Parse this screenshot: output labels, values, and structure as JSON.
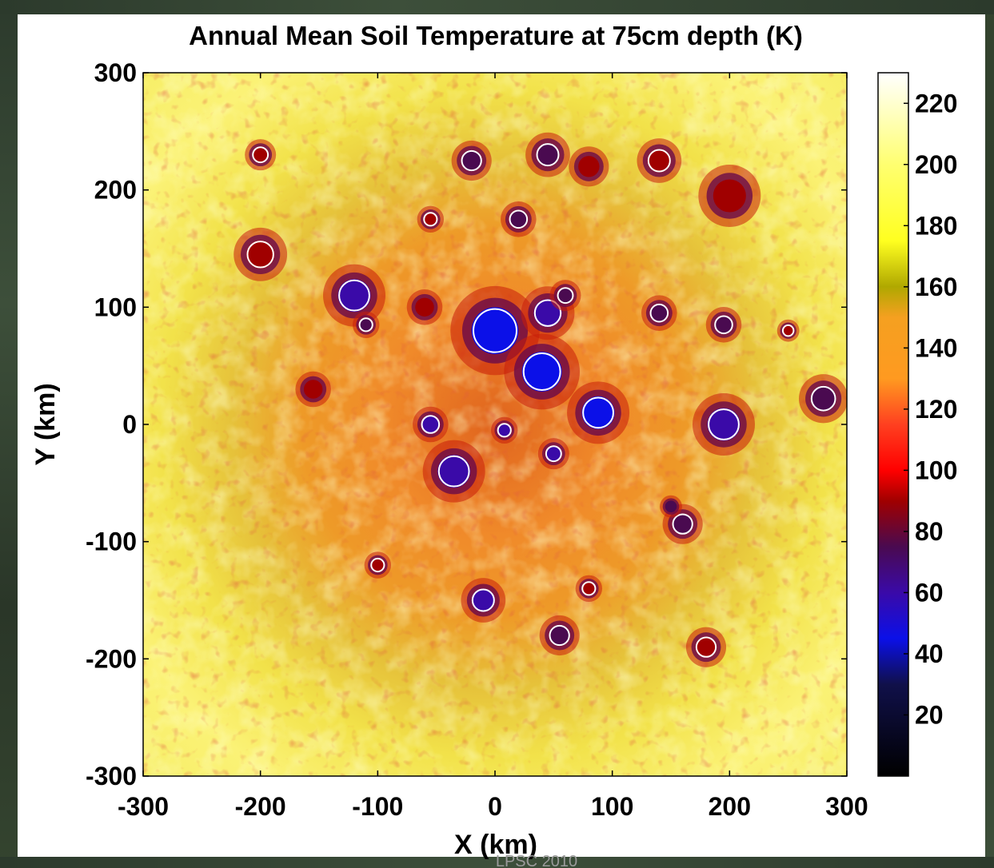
{
  "chart_data": {
    "type": "heatmap",
    "title": "Annual Mean Soil Temperature at 75cm depth (K)",
    "xlabel": "X (km)",
    "ylabel": "Y (km)",
    "xlim": [
      -300,
      300
    ],
    "ylim": [
      -300,
      300
    ],
    "x_ticks": [
      "-300",
      "-200",
      "-100",
      "0",
      "100",
      "200",
      "300"
    ],
    "y_ticks": [
      "300",
      "200",
      "100",
      "0",
      "-100",
      "-200",
      "-300"
    ],
    "colorbar": {
      "range": [
        0,
        230
      ],
      "ticks": [
        "220",
        "200",
        "180",
        "160",
        "140",
        "120",
        "100",
        "80",
        "60",
        "40",
        "20"
      ],
      "colormap": [
        {
          "value": 0,
          "color": "#000000"
        },
        {
          "value": 30,
          "color": "#10104a"
        },
        {
          "value": 45,
          "color": "#0b10e8"
        },
        {
          "value": 60,
          "color": "#3a0aa8"
        },
        {
          "value": 75,
          "color": "#4a0a50"
        },
        {
          "value": 90,
          "color": "#a00000"
        },
        {
          "value": 100,
          "color": "#ff0000"
        },
        {
          "value": 115,
          "color": "#ff4020"
        },
        {
          "value": 130,
          "color": "#ff9a20"
        },
        {
          "value": 150,
          "color": "#f5a020"
        },
        {
          "value": 160,
          "color": "#b0a800"
        },
        {
          "value": 175,
          "color": "#ffff20"
        },
        {
          "value": 200,
          "color": "#ffff70"
        },
        {
          "value": 230,
          "color": "#ffffff"
        }
      ]
    },
    "cold_traps": [
      {
        "x": 0,
        "y": 80,
        "r": 20,
        "temp": 45,
        "contour": true
      },
      {
        "x": 40,
        "y": 45,
        "r": 17,
        "temp": 45,
        "contour": true
      },
      {
        "x": 88,
        "y": 10,
        "r": 14,
        "temp": 45,
        "contour": true
      },
      {
        "x": 45,
        "y": 95,
        "r": 12,
        "temp": 55,
        "contour": true
      },
      {
        "x": -55,
        "y": 0,
        "r": 8,
        "temp": 55,
        "contour": true
      },
      {
        "x": 8,
        "y": -5,
        "r": 6,
        "temp": 60,
        "contour": true
      },
      {
        "x": -35,
        "y": -40,
        "r": 14,
        "temp": 55,
        "contour": true
      },
      {
        "x": 50,
        "y": -25,
        "r": 7,
        "temp": 60,
        "contour": true
      },
      {
        "x": -120,
        "y": 110,
        "r": 14,
        "temp": 60,
        "contour": true
      },
      {
        "x": -110,
        "y": 85,
        "r": 6,
        "temp": 65,
        "contour": true
      },
      {
        "x": -200,
        "y": 145,
        "r": 12,
        "temp": 80,
        "contour": true
      },
      {
        "x": 195,
        "y": 0,
        "r": 14,
        "temp": 60,
        "contour": true
      },
      {
        "x": 280,
        "y": 22,
        "r": 11,
        "temp": 62,
        "contour": true
      },
      {
        "x": 160,
        "y": -85,
        "r": 9,
        "temp": 75,
        "contour": true
      },
      {
        "x": -10,
        "y": -150,
        "r": 10,
        "temp": 60,
        "contour": true
      },
      {
        "x": 55,
        "y": -180,
        "r": 9,
        "temp": 70,
        "contour": true
      },
      {
        "x": 45,
        "y": 230,
        "r": 10,
        "temp": 70,
        "contour": true
      },
      {
        "x": 20,
        "y": 175,
        "r": 8,
        "temp": 72,
        "contour": true
      },
      {
        "x": -20,
        "y": 225,
        "r": 9,
        "temp": 70,
        "contour": true
      },
      {
        "x": 140,
        "y": 95,
        "r": 8,
        "temp": 70,
        "contour": true
      },
      {
        "x": 195,
        "y": 85,
        "r": 8,
        "temp": 70,
        "contour": true
      },
      {
        "x": 140,
        "y": 225,
        "r": 10,
        "temp": 85,
        "contour": true
      },
      {
        "x": 200,
        "y": 195,
        "r": 14,
        "temp": 90,
        "contour": false
      },
      {
        "x": 80,
        "y": 220,
        "r": 9,
        "temp": 85,
        "contour": false
      },
      {
        "x": -155,
        "y": 30,
        "r": 8,
        "temp": 80,
        "contour": false
      },
      {
        "x": 180,
        "y": -190,
        "r": 9,
        "temp": 85,
        "contour": true
      },
      {
        "x": -60,
        "y": 100,
        "r": 8,
        "temp": 80,
        "contour": false
      },
      {
        "x": -200,
        "y": 230,
        "r": 7,
        "temp": 90,
        "contour": true
      },
      {
        "x": 60,
        "y": 110,
        "r": 7,
        "temp": 65,
        "contour": true
      },
      {
        "x": 150,
        "y": -70,
        "r": 5,
        "temp": 75,
        "contour": false
      },
      {
        "x": -100,
        "y": -120,
        "r": 6,
        "temp": 85,
        "contour": true
      },
      {
        "x": 80,
        "y": -140,
        "r": 6,
        "temp": 80,
        "contour": true
      },
      {
        "x": 250,
        "y": 80,
        "r": 5,
        "temp": 85,
        "contour": true
      },
      {
        "x": -55,
        "y": 175,
        "r": 6,
        "temp": 88,
        "contour": true
      }
    ]
  },
  "footer": {
    "note": "LPSC 2010"
  }
}
